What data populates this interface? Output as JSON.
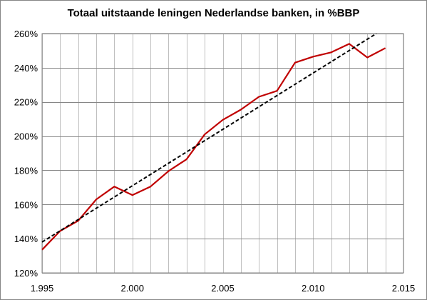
{
  "chart_data": {
    "type": "line",
    "title": "Totaal uitstaande leningen Nederlandse banken, in %BBP",
    "xlabel": "",
    "ylabel": "",
    "xlim": [
      1995,
      2015
    ],
    "ylim": [
      120,
      260
    ],
    "x_ticks": [
      1995,
      2000,
      2005,
      2010,
      2015
    ],
    "x_tick_labels": [
      "1.995",
      "2.000",
      "2.005",
      "2.010",
      "2.015"
    ],
    "y_ticks": [
      120,
      140,
      160,
      180,
      200,
      220,
      240,
      260
    ],
    "y_tick_labels": [
      "120%",
      "140%",
      "160%",
      "180%",
      "200%",
      "220%",
      "240%",
      "260%"
    ],
    "grid": {
      "vertical_every": 1,
      "horizontal": true
    },
    "legend": "none",
    "series": [
      {
        "style": "solid",
        "color": "#c00000",
        "x": [
          1995,
          1996,
          1997,
          1998,
          1999,
          2000,
          2001,
          2002,
          2003,
          2004,
          2005,
          2006,
          2007,
          2008,
          2009,
          2010,
          2011,
          2012,
          2013,
          2014
        ],
        "values": [
          133.5,
          144.5,
          150.5,
          163,
          170.5,
          165.5,
          170.5,
          179.5,
          186.5,
          201,
          209.5,
          215.5,
          223,
          226.5,
          243,
          246.5,
          249,
          254,
          246,
          251.5
        ]
      },
      {
        "style": "dashed",
        "color": "#000000",
        "x": [
          1995,
          2013.5
        ],
        "values": [
          138,
          260
        ]
      }
    ]
  }
}
